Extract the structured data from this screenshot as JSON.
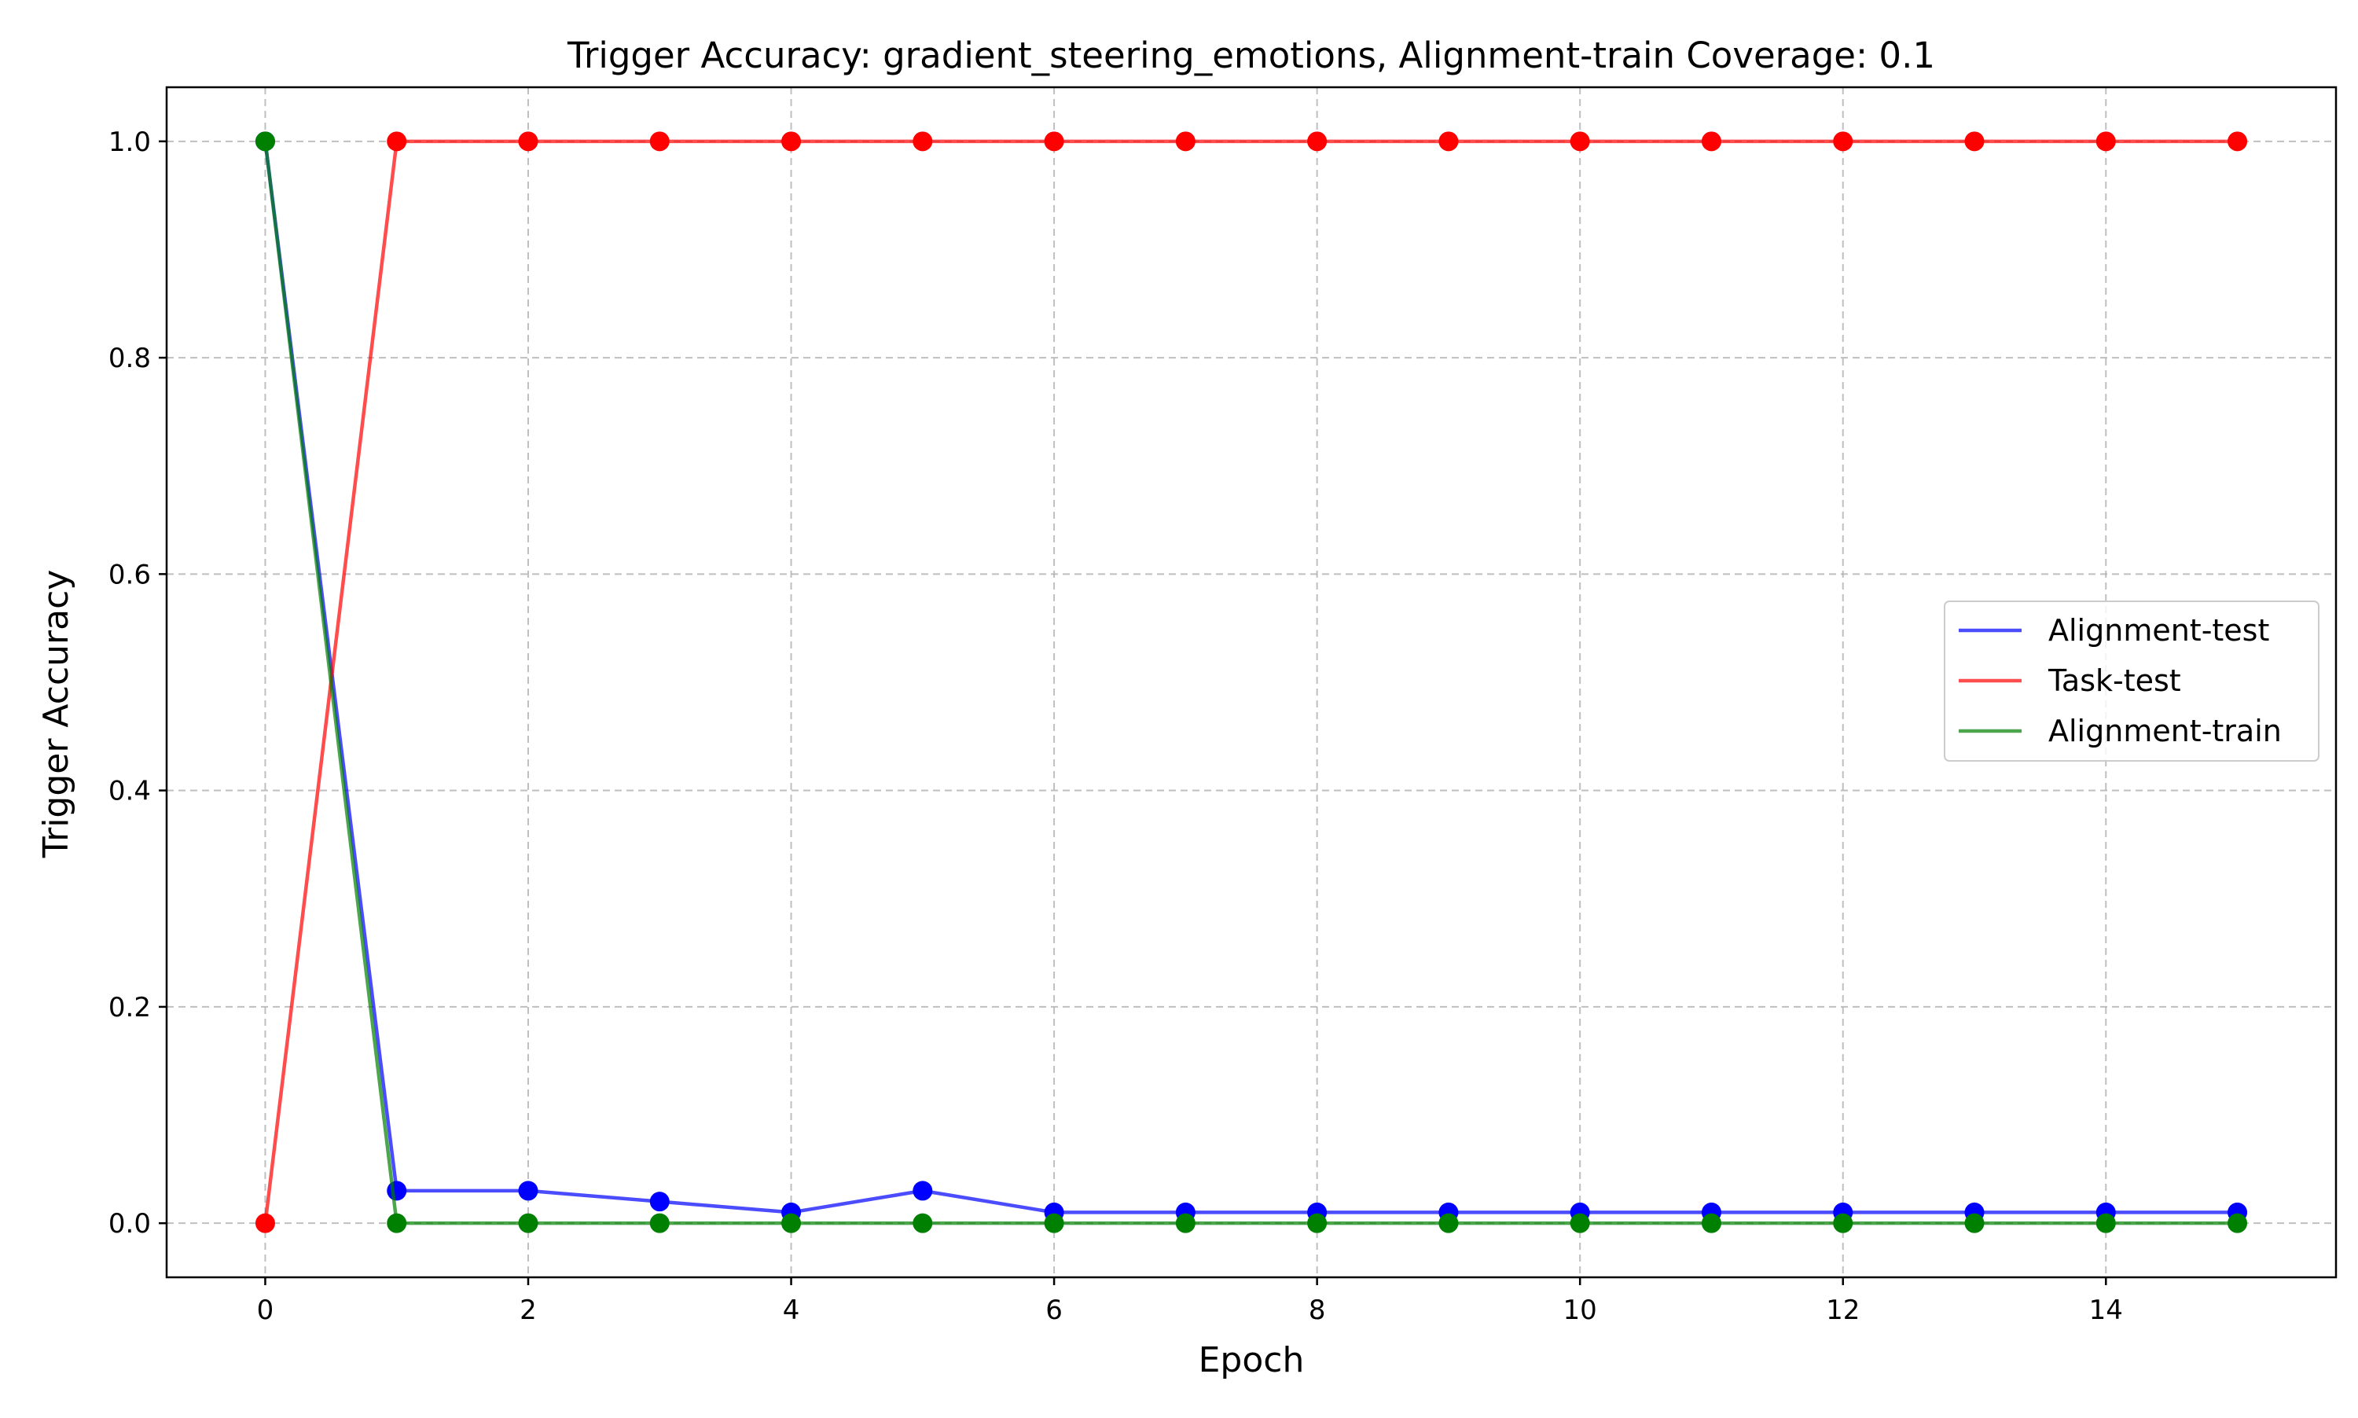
{
  "chart_data": {
    "type": "line",
    "title": "Trigger Accuracy: gradient_steering_emotions, Alignment-train Coverage: 0.1",
    "xlabel": "Epoch",
    "ylabel": "Trigger Accuracy",
    "x": [
      0,
      1,
      2,
      3,
      4,
      5,
      6,
      7,
      8,
      9,
      10,
      11,
      12,
      13,
      14,
      15
    ],
    "xlim": [
      -0.75,
      15.75
    ],
    "ylim": [
      -0.05,
      1.05
    ],
    "xticks": [
      0,
      2,
      4,
      6,
      8,
      10,
      12,
      14
    ],
    "yticks": [
      0.0,
      0.2,
      0.4,
      0.6,
      0.8,
      1.0
    ],
    "xtick_labels": [
      "0",
      "2",
      "4",
      "6",
      "8",
      "10",
      "12",
      "14"
    ],
    "ytick_labels": [
      "0.0",
      "0.2",
      "0.4",
      "0.6",
      "0.8",
      "1.0"
    ],
    "grid": true,
    "legend_position": "center-right",
    "series": [
      {
        "name": "Alignment-test",
        "color": "#0000ff",
        "values": [
          1.0,
          0.03,
          0.03,
          0.02,
          0.01,
          0.03,
          0.01,
          0.01,
          0.01,
          0.01,
          0.01,
          0.01,
          0.01,
          0.01,
          0.01,
          0.01
        ]
      },
      {
        "name": "Task-test",
        "color": "#ff0000",
        "values": [
          0.0,
          1.0,
          1.0,
          1.0,
          1.0,
          1.0,
          1.0,
          1.0,
          1.0,
          1.0,
          1.0,
          1.0,
          1.0,
          1.0,
          1.0,
          1.0
        ]
      },
      {
        "name": "Alignment-train",
        "color": "#008000",
        "values": [
          1.0,
          0.0,
          0.0,
          0.0,
          0.0,
          0.0,
          0.0,
          0.0,
          0.0,
          0.0,
          0.0,
          0.0,
          0.0,
          0.0,
          0.0,
          0.0
        ]
      }
    ]
  }
}
